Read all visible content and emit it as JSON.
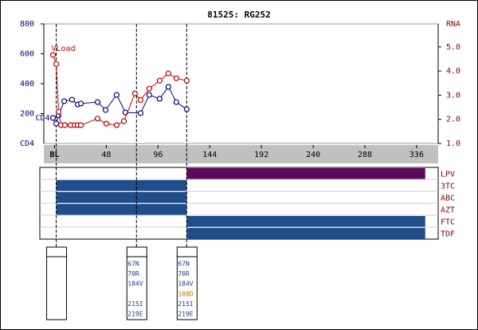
{
  "chart_data": {
    "type": "line",
    "title": "81525: RG252",
    "ylabel": "CD4",
    "y2label": "RNA",
    "xlim": [
      -10,
      356
    ],
    "xticks": [
      {
        "value": 0,
        "label": "BL"
      },
      48,
      96,
      144,
      192,
      240,
      288,
      336
    ],
    "ylim": [
      0,
      800
    ],
    "yticks": [
      200,
      400,
      600,
      800
    ],
    "y2lim": [
      1,
      5.95
    ],
    "y2ticks": [
      {
        "value": 1,
        "label": "1.0"
      },
      {
        "value": 2,
        "label": "2.0"
      },
      {
        "value": 3,
        "label": "3.0"
      },
      {
        "value": 4,
        "label": "4.0"
      },
      {
        "value": 5,
        "label": "5.0"
      }
    ],
    "series": [
      {
        "name": "CD4",
        "color": "#000080",
        "x": [
          -1.5,
          1.5,
          3.7,
          8.9,
          16.2,
          21.4,
          24.4,
          39.9,
          47.3,
          57.6,
          65.7,
          79.8,
          87.9,
          97.5,
          105.6,
          113,
          122.6
        ],
        "values": [
          171,
          133,
          187,
          283,
          293,
          261,
          267,
          277,
          224,
          325,
          208,
          203,
          325,
          299,
          379,
          277,
          229
        ]
      },
      {
        "name": "VLoad",
        "color": "#c00000",
        "axis": "y2",
        "x": [
          -1.5,
          1.5,
          3.7,
          5.9,
          9.6,
          14.8,
          18.5,
          21.4,
          24.4,
          39.9,
          48,
          57.6,
          64.3,
          74.6,
          79.8,
          87.9,
          97.5,
          105.6,
          113,
          122.6
        ],
        "values": [
          4.67,
          4.29,
          2.32,
          1.76,
          1.76,
          1.76,
          1.76,
          1.76,
          1.76,
          2.03,
          1.82,
          1.76,
          1.92,
          3.07,
          2.8,
          3.27,
          3.6,
          3.9,
          3.7,
          3.6
        ]
      }
    ],
    "drugs": [
      {
        "name": "LPV",
        "color": "#5c0a5c",
        "start": 122.6,
        "end": 344
      },
      {
        "name": "3TC",
        "color": "#1f4e8a",
        "start": 1.5,
        "end": 122.6
      },
      {
        "name": "ABC",
        "color": "#1f4e8a",
        "start": 1.5,
        "end": 122.6
      },
      {
        "name": "AZT",
        "color": "#1f4e8a",
        "start": 1.5,
        "end": 122.6
      },
      {
        "name": "FTC",
        "color": "#1f4e8a",
        "start": 122.6,
        "end": 344
      },
      {
        "name": "TDF",
        "color": "#1f4e8a",
        "start": 122.6,
        "end": 344
      }
    ],
    "genotypes": [
      {
        "week": 1.5,
        "mutations": [],
        "colors": []
      },
      {
        "week": 76,
        "mutations": [
          "67N",
          "70R",
          "184V",
          null,
          "215I",
          "219E"
        ],
        "colors": [
          "#1a3a8a",
          "#1a3a8a",
          "#1a3a8a",
          null,
          "#1a3a8a",
          "#1a3a8a"
        ]
      },
      {
        "week": 122.6,
        "mutations": [
          "67N",
          "70R",
          "184V",
          "188D",
          "215I",
          "219E"
        ],
        "colors": [
          "#1a3a8a",
          "#1a3a8a",
          "#1a3a8a",
          "#c07000",
          "#1a3a8a",
          "#1a3a8a"
        ]
      }
    ]
  }
}
